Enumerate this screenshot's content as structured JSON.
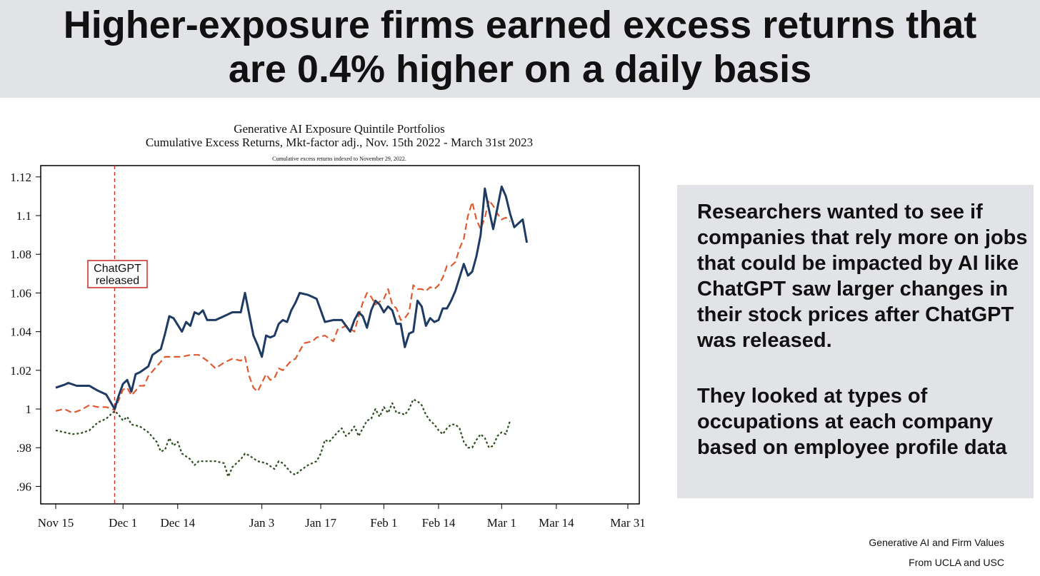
{
  "header": {
    "title_line1": "Higher-exposure firms earned excess returns that",
    "title_line2": "are 0.4% higher on a daily basis"
  },
  "chart_data": {
    "type": "line",
    "title": "Generative AI Exposure Quintile Portfolios",
    "subtitle": "Cumulative Excess Returns, Mkt-factor adj., Nov. 15th 2022 - March 31st 2023",
    "note": "Cumulative excess returns indexed to November 29, 2022.",
    "xlabel": "",
    "ylabel": "",
    "x_ticks": [
      "Nov 15",
      "Dec 1",
      "Dec 14",
      "Jan 3",
      "Jan 17",
      "Feb 1",
      "Feb 14",
      "Mar 1",
      "Mar 14",
      "Mar 31"
    ],
    "x_tick_days": [
      0,
      16,
      29,
      49,
      63,
      78,
      91,
      106,
      119,
      136
    ],
    "y_ticks": [
      0.96,
      0.98,
      1,
      1.02,
      1.04,
      1.06,
      1.08,
      1.1,
      1.12
    ],
    "y_tick_labels": [
      ".96",
      ".98",
      "1",
      "1.02",
      "1.04",
      "1.06",
      "1.08",
      "1.1",
      "1.12"
    ],
    "xlim": [
      0,
      136
    ],
    "ylim": [
      0.955,
      1.124
    ],
    "grid": false,
    "annotation": {
      "lines": [
        "ChatGPT",
        "released"
      ],
      "x_day": 14,
      "color": "#cc2a22"
    },
    "series": [
      {
        "color": "#1f3b63",
        "style": "solid",
        "points": [
          [
            0,
            1.011
          ],
          [
            2,
            1.0125
          ],
          [
            3,
            1.0135
          ],
          [
            5,
            1.012
          ],
          [
            8,
            1.012
          ],
          [
            10,
            1.0095
          ],
          [
            12,
            1.0075
          ],
          [
            14,
            1.0
          ],
          [
            15,
            1.007
          ],
          [
            16,
            1.013
          ],
          [
            17,
            1.015
          ],
          [
            18,
            1.009
          ],
          [
            19,
            1.018
          ],
          [
            20,
            1.019
          ],
          [
            22,
            1.022
          ],
          [
            23,
            1.028
          ],
          [
            25,
            1.031
          ],
          [
            26,
            1.039
          ],
          [
            27,
            1.048
          ],
          [
            28,
            1.047
          ],
          [
            30,
            1.04
          ],
          [
            31,
            1.045
          ],
          [
            32,
            1.043
          ],
          [
            33,
            1.05
          ],
          [
            34,
            1.049
          ],
          [
            35,
            1.051
          ],
          [
            36,
            1.046
          ],
          [
            38,
            1.046
          ],
          [
            40,
            1.048
          ],
          [
            42,
            1.05
          ],
          [
            44,
            1.05
          ],
          [
            45,
            1.06
          ],
          [
            46,
            1.049
          ],
          [
            47,
            1.038
          ],
          [
            48,
            1.033
          ],
          [
            49,
            1.027
          ],
          [
            50,
            1.038
          ],
          [
            51,
            1.037
          ],
          [
            52,
            1.038
          ],
          [
            53,
            1.044
          ],
          [
            54,
            1.046
          ],
          [
            55,
            1.045
          ],
          [
            56,
            1.051
          ],
          [
            57,
            1.055
          ],
          [
            58,
            1.06
          ],
          [
            60,
            1.059
          ],
          [
            61,
            1.058
          ],
          [
            62,
            1.057
          ],
          [
            63,
            1.051
          ],
          [
            64,
            1.045
          ],
          [
            66,
            1.046
          ],
          [
            68,
            1.046
          ],
          [
            70,
            1.04
          ],
          [
            71,
            1.046
          ],
          [
            72,
            1.05
          ],
          [
            73,
            1.048
          ],
          [
            74,
            1.042
          ],
          [
            75,
            1.051
          ],
          [
            76,
            1.056
          ],
          [
            77,
            1.054
          ],
          [
            78,
            1.05
          ],
          [
            79,
            1.053
          ],
          [
            80,
            1.051
          ],
          [
            81,
            1.044
          ],
          [
            82,
            1.044
          ],
          [
            83,
            1.032
          ],
          [
            84,
            1.039
          ],
          [
            85,
            1.04
          ],
          [
            86,
            1.056
          ],
          [
            87,
            1.053
          ],
          [
            88,
            1.043
          ],
          [
            89,
            1.047
          ],
          [
            90,
            1.045
          ],
          [
            91,
            1.046
          ],
          [
            92,
            1.052
          ],
          [
            93,
            1.052
          ],
          [
            94,
            1.056
          ],
          [
            95,
            1.061
          ],
          [
            96,
            1.068
          ],
          [
            97,
            1.075
          ],
          [
            98,
            1.069
          ],
          [
            99,
            1.071
          ],
          [
            100,
            1.079
          ],
          [
            101,
            1.09
          ],
          [
            102,
            1.114
          ],
          [
            103,
            1.103
          ],
          [
            104,
            1.093
          ],
          [
            105,
            1.104
          ],
          [
            106,
            1.115
          ],
          [
            107,
            1.11
          ],
          [
            108,
            1.101
          ],
          [
            109,
            1.094
          ],
          [
            110,
            1.096
          ],
          [
            111,
            1.098
          ],
          [
            112,
            1.086
          ]
        ]
      },
      {
        "color": "#e05a30",
        "style": "dash",
        "points": [
          [
            0,
            0.999
          ],
          [
            2,
            1.0
          ],
          [
            4,
            0.998
          ],
          [
            6,
            0.9995
          ],
          [
            8,
            1.002
          ],
          [
            10,
            1.001
          ],
          [
            12,
            1.001
          ],
          [
            14,
            0.9995
          ],
          [
            16,
            1.01
          ],
          [
            17,
            1.011
          ],
          [
            18,
            1.007
          ],
          [
            20,
            1.012
          ],
          [
            21,
            1.012
          ],
          [
            22,
            1.017
          ],
          [
            24,
            1.022
          ],
          [
            26,
            1.027
          ],
          [
            28,
            1.027
          ],
          [
            30,
            1.027
          ],
          [
            32,
            1.028
          ],
          [
            34,
            1.028
          ],
          [
            36,
            1.025
          ],
          [
            38,
            1.021
          ],
          [
            40,
            1.024
          ],
          [
            42,
            1.026
          ],
          [
            44,
            1.025
          ],
          [
            45,
            1.027
          ],
          [
            46,
            1.017
          ],
          [
            47,
            1.011
          ],
          [
            48,
            1.009
          ],
          [
            50,
            1.018
          ],
          [
            51,
            1.015
          ],
          [
            52,
            1.016
          ],
          [
            53,
            1.021
          ],
          [
            54,
            1.02
          ],
          [
            56,
            1.025
          ],
          [
            57,
            1.026
          ],
          [
            58,
            1.03
          ],
          [
            59,
            1.034
          ],
          [
            61,
            1.035
          ],
          [
            62,
            1.037
          ],
          [
            64,
            1.038
          ],
          [
            66,
            1.035
          ],
          [
            67,
            1.041
          ],
          [
            69,
            1.043
          ],
          [
            71,
            1.04
          ],
          [
            72,
            1.048
          ],
          [
            73,
            1.055
          ],
          [
            74,
            1.06
          ],
          [
            75,
            1.058
          ],
          [
            76,
            1.054
          ],
          [
            78,
            1.057
          ],
          [
            79,
            1.062
          ],
          [
            80,
            1.054
          ],
          [
            81,
            1.052
          ],
          [
            82,
            1.046
          ],
          [
            83,
            1.047
          ],
          [
            84,
            1.05
          ],
          [
            85,
            1.064
          ],
          [
            86,
            1.062
          ],
          [
            87,
            1.062
          ],
          [
            88,
            1.061
          ],
          [
            89,
            1.063
          ],
          [
            90,
            1.062
          ],
          [
            91,
            1.064
          ],
          [
            92,
            1.068
          ],
          [
            93,
            1.074
          ],
          [
            94,
            1.074
          ],
          [
            95,
            1.076
          ],
          [
            96,
            1.083
          ],
          [
            97,
            1.088
          ],
          [
            98,
            1.1
          ],
          [
            99,
            1.107
          ],
          [
            100,
            1.098
          ],
          [
            101,
            1.093
          ],
          [
            102,
            1.099
          ],
          [
            103,
            1.108
          ],
          [
            104,
            1.105
          ],
          [
            105,
            1.101
          ],
          [
            106,
            1.098
          ],
          [
            107,
            1.099
          ],
          [
            108,
            1.097
          ]
        ]
      },
      {
        "color": "#2a4a1e",
        "style": "dot",
        "points": [
          [
            0,
            0.989
          ],
          [
            2,
            0.988
          ],
          [
            4,
            0.987
          ],
          [
            6,
            0.9875
          ],
          [
            8,
            0.989
          ],
          [
            10,
            0.993
          ],
          [
            12,
            0.995
          ],
          [
            14,
            0.999
          ],
          [
            15,
            0.997
          ],
          [
            16,
            0.994
          ],
          [
            17,
            0.996
          ],
          [
            18,
            0.992
          ],
          [
            20,
            0.991
          ],
          [
            22,
            0.988
          ],
          [
            24,
            0.983
          ],
          [
            25,
            0.978
          ],
          [
            26,
            0.979
          ],
          [
            27,
            0.985
          ],
          [
            28,
            0.981
          ],
          [
            29,
            0.983
          ],
          [
            30,
            0.977
          ],
          [
            32,
            0.974
          ],
          [
            33,
            0.971
          ],
          [
            34,
            0.973
          ],
          [
            36,
            0.973
          ],
          [
            38,
            0.973
          ],
          [
            40,
            0.972
          ],
          [
            41,
            0.965
          ],
          [
            42,
            0.97
          ],
          [
            44,
            0.974
          ],
          [
            45,
            0.977
          ],
          [
            46,
            0.976
          ],
          [
            48,
            0.973
          ],
          [
            50,
            0.972
          ],
          [
            52,
            0.969
          ],
          [
            53,
            0.973
          ],
          [
            54,
            0.972
          ],
          [
            56,
            0.967
          ],
          [
            57,
            0.966
          ],
          [
            58,
            0.968
          ],
          [
            60,
            0.971
          ],
          [
            62,
            0.973
          ],
          [
            63,
            0.977
          ],
          [
            64,
            0.984
          ],
          [
            65,
            0.983
          ],
          [
            67,
            0.988
          ],
          [
            68,
            0.99
          ],
          [
            69,
            0.986
          ],
          [
            70,
            0.988
          ],
          [
            71,
            0.991
          ],
          [
            72,
            0.986
          ],
          [
            73,
            0.99
          ],
          [
            74,
            0.994
          ],
          [
            75,
            0.995
          ],
          [
            76,
            1.0
          ],
          [
            77,
            0.996
          ],
          [
            78,
            1.001
          ],
          [
            79,
            0.998
          ],
          [
            80,
            1.003
          ],
          [
            81,
            0.998
          ],
          [
            82,
            0.998
          ],
          [
            83,
            0.997
          ],
          [
            84,
            1.0
          ],
          [
            85,
            1.005
          ],
          [
            86,
            1.004
          ],
          [
            87,
            1.002
          ],
          [
            88,
            0.997
          ],
          [
            89,
            0.994
          ],
          [
            90,
            0.992
          ],
          [
            91,
            0.989
          ],
          [
            92,
            0.987
          ],
          [
            93,
            0.99
          ],
          [
            94,
            0.992
          ],
          [
            95,
            0.992
          ],
          [
            96,
            0.99
          ],
          [
            97,
            0.983
          ],
          [
            98,
            0.98
          ],
          [
            99,
            0.98
          ],
          [
            100,
            0.984
          ],
          [
            101,
            0.987
          ],
          [
            102,
            0.985
          ],
          [
            103,
            0.98
          ],
          [
            104,
            0.981
          ],
          [
            105,
            0.986
          ],
          [
            106,
            0.988
          ],
          [
            107,
            0.987
          ],
          [
            108,
            0.994
          ]
        ]
      }
    ]
  },
  "text_panel": {
    "paragraph1": "Researchers wanted to see if companies that rely more on jobs that could be impacted by AI like ChatGPT saw larger changes in their stock prices after ChatGPT was released.",
    "paragraph2": "They looked at types of occupations at each company based on employee profile data"
  },
  "source": {
    "line1": "Generative AI and Firm Values",
    "line2": "From UCLA and USC"
  }
}
